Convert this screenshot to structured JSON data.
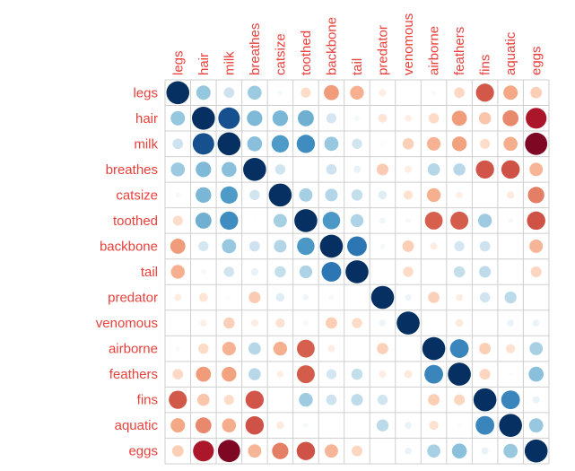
{
  "chart_data": {
    "type": "heatmap",
    "style": "corrplot-circle",
    "variables": [
      "legs",
      "hair",
      "milk",
      "breathes",
      "catsize",
      "toothed",
      "backbone",
      "tail",
      "predator",
      "venomous",
      "airborne",
      "feathers",
      "fins",
      "aquatic",
      "eggs"
    ],
    "value_range": [
      -1,
      1
    ],
    "grid": true,
    "label_color": "#E8413C",
    "color_scale": [
      "#67001F",
      "#B2182B",
      "#D6604D",
      "#F4A582",
      "#FDDBC7",
      "#FFFFFF",
      "#D1E5F0",
      "#92C5DE",
      "#4393C3",
      "#2166AC",
      "#053061"
    ],
    "matrix": [
      [
        1,
        0.39,
        0.21,
        0.37,
        0.05,
        -0.19,
        -0.43,
        -0.36,
        -0.1,
        0,
        0.04,
        -0.21,
        -0.62,
        -0.39,
        -0.25
      ],
      [
        0.39,
        1,
        0.88,
        0.45,
        0.46,
        0.49,
        0.19,
        0.05,
        -0.15,
        -0.09,
        -0.2,
        -0.43,
        -0.28,
        -0.48,
        -0.82
      ],
      [
        0.21,
        0.88,
        1,
        0.42,
        0.57,
        0.63,
        0.38,
        0.2,
        -0.03,
        -0.24,
        -0.35,
        -0.41,
        -0.19,
        -0.37,
        -0.94
      ],
      [
        0.37,
        0.45,
        0.42,
        1,
        0.2,
        -0.01,
        0.21,
        0.1,
        -0.26,
        -0.1,
        0.29,
        0.28,
        -0.63,
        -0.64,
        -0.34
      ],
      [
        0.05,
        0.46,
        0.57,
        0.2,
        1,
        0.34,
        0.3,
        0.24,
        0.14,
        -0.16,
        -0.36,
        -0.09,
        0,
        -0.11,
        -0.51
      ],
      [
        -0.19,
        0.49,
        0.63,
        -0.01,
        0.34,
        1,
        0.58,
        0.31,
        0.07,
        0.05,
        -0.6,
        -0.61,
        0.36,
        0.05,
        -0.64
      ],
      [
        -0.43,
        0.19,
        0.38,
        0.21,
        0.3,
        0.58,
        1,
        0.73,
        0.05,
        -0.25,
        -0.1,
        0.19,
        0.21,
        0,
        -0.34
      ],
      [
        -0.36,
        0.05,
        0.2,
        0.1,
        0.24,
        0.31,
        0.73,
        1,
        0,
        -0.2,
        0,
        0.24,
        0.26,
        0,
        -0.22
      ],
      [
        -0.1,
        -0.15,
        -0.03,
        -0.26,
        0.14,
        0.07,
        0.05,
        0,
        1,
        0.08,
        -0.24,
        -0.1,
        0.2,
        0.27,
        0
      ],
      [
        0,
        -0.09,
        -0.24,
        -0.1,
        -0.16,
        0.05,
        -0.25,
        -0.2,
        0.08,
        1,
        0,
        -0.12,
        0,
        0.09,
        0.09
      ],
      [
        0.04,
        -0.2,
        -0.35,
        0.29,
        -0.36,
        -0.6,
        -0.1,
        0,
        -0.24,
        0,
        1,
        0.66,
        -0.25,
        -0.16,
        0.33
      ],
      [
        -0.21,
        -0.43,
        -0.41,
        0.28,
        -0.09,
        -0.61,
        0.19,
        0.24,
        -0.1,
        -0.12,
        0.66,
        1,
        -0.22,
        -0.03,
        0.42
      ],
      [
        -0.62,
        -0.28,
        -0.19,
        -0.63,
        0,
        0.36,
        0.21,
        0.26,
        0.2,
        0,
        -0.25,
        -0.22,
        1,
        0.66,
        0.1
      ],
      [
        -0.39,
        -0.48,
        -0.37,
        -0.64,
        -0.11,
        0.05,
        0,
        0,
        0.27,
        0.09,
        -0.16,
        -0.03,
        0.66,
        1,
        0.38
      ],
      [
        -0.25,
        -0.82,
        -0.94,
        -0.34,
        -0.51,
        -0.64,
        -0.34,
        -0.22,
        0,
        0.09,
        0.33,
        0.42,
        0.1,
        0.38,
        1
      ]
    ]
  }
}
